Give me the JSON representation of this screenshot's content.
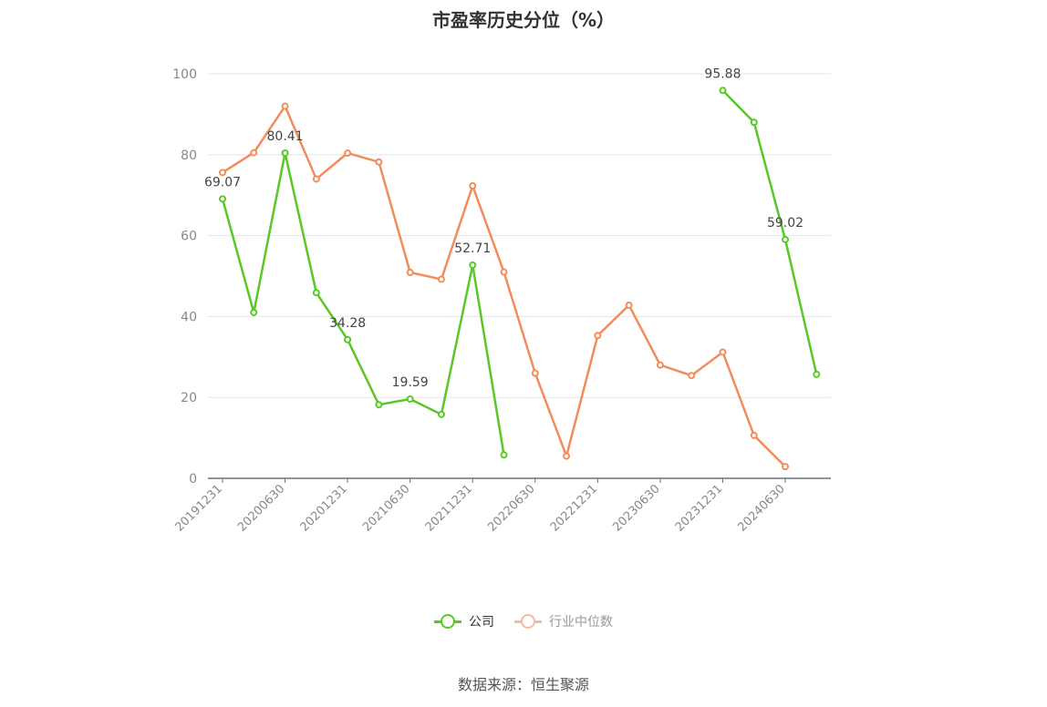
{
  "title": "市盈率历史分位（%）",
  "source": "数据来源：恒生聚源",
  "legend": [
    {
      "name": "公司",
      "color": "#5ac727"
    },
    {
      "name": "行业中位数",
      "color": "#f28c5b",
      "dim_color": "#f5b8a0"
    }
  ],
  "chart_data": {
    "type": "line",
    "title": "市盈率历史分位（%）",
    "ylim": [
      0,
      100
    ],
    "yticks": [
      0,
      20,
      40,
      60,
      80,
      100
    ],
    "grid": true,
    "legend_position": "bottom",
    "categories": [
      "20191231",
      "20200331",
      "20200630",
      "20200930",
      "20201231",
      "20210331",
      "20210630",
      "20210930",
      "20211231",
      "20220331",
      "20220630",
      "20220930",
      "20221231",
      "20230331",
      "20230630",
      "20230930",
      "20231231",
      "20240331",
      "20240630",
      "20240930"
    ],
    "tick_labels": [
      "20191231",
      "20200630",
      "20201231",
      "20210630",
      "20211231",
      "20220630",
      "20221231",
      "20230630",
      "20231231",
      "20240630"
    ],
    "series": [
      {
        "name": "公司",
        "color": "#5ac727",
        "values": [
          69.07,
          41.0,
          80.41,
          45.9,
          34.28,
          18.2,
          19.59,
          15.8,
          52.71,
          5.8,
          null,
          null,
          null,
          null,
          null,
          null,
          95.88,
          88.0,
          59.02,
          25.7
        ],
        "labels": [
          "69.07",
          null,
          "80.41",
          null,
          "34.28",
          null,
          "19.59",
          null,
          "52.71",
          null,
          null,
          null,
          null,
          null,
          null,
          null,
          "95.88",
          null,
          "59.02",
          null
        ]
      },
      {
        "name": "行业中位数",
        "color": "#f28c5b",
        "values": [
          75.6,
          80.5,
          92.0,
          74.0,
          80.4,
          78.2,
          50.9,
          49.2,
          72.3,
          51.0,
          26.0,
          5.5,
          35.3,
          42.8,
          28.0,
          25.4,
          31.2,
          10.6,
          2.9,
          null
        ]
      }
    ]
  }
}
